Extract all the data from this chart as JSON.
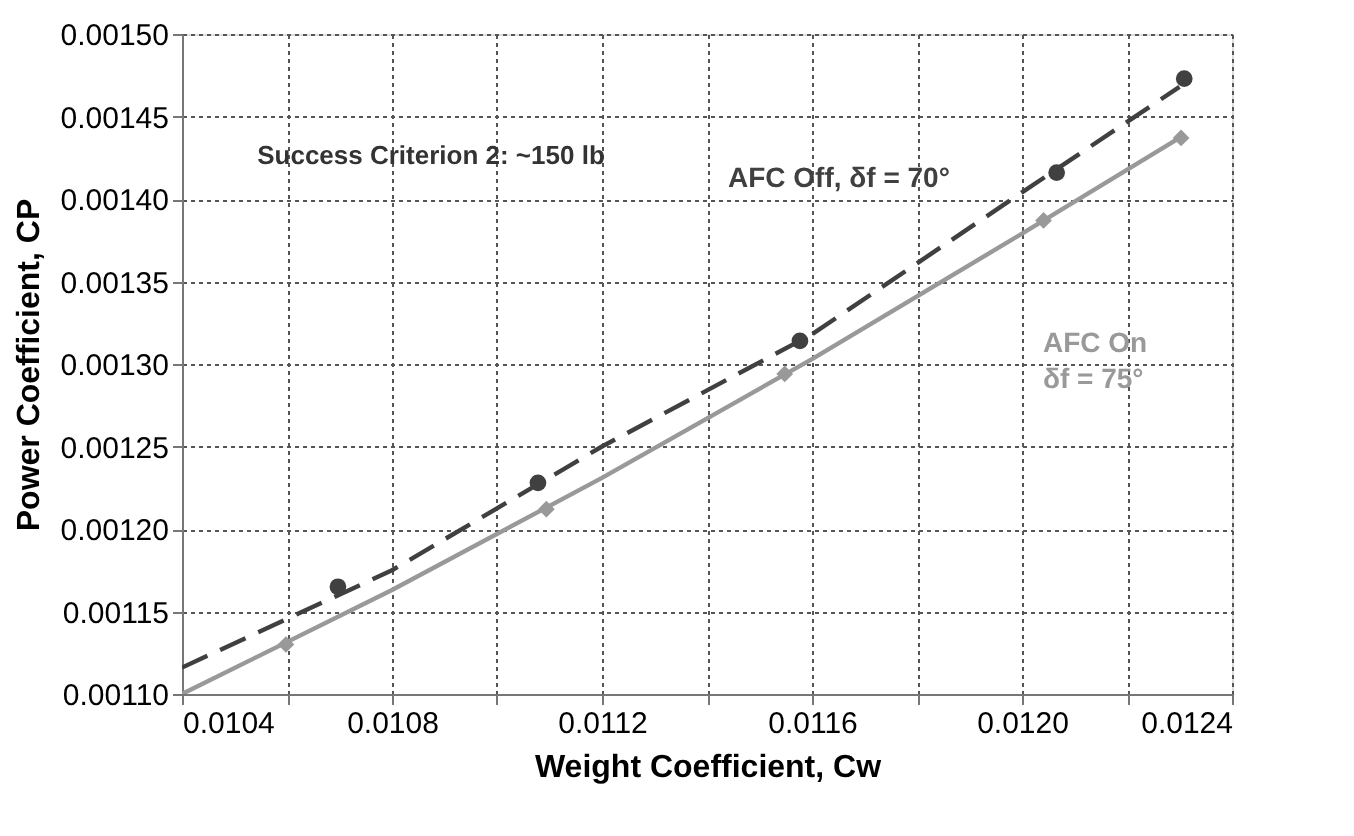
{
  "chart_data": {
    "type": "scatter",
    "xlabel": "Weight Coefficient, Cw",
    "ylabel": "Power Coefficient, CP",
    "annotations": [
      "Success Criterion 2:  ~150 lb"
    ],
    "series": [
      {
        "name": "AFC Off, δf = 70°",
        "marker": "circle",
        "color": "#404040",
        "x": [
          0.010697,
          0.011078,
          0.011577,
          0.012066,
          0.012309
        ],
        "values": [
          0.001165,
          0.001228,
          0.001314,
          0.001416,
          0.001473
        ]
      },
      {
        "type": "line",
        "line_style": "dashed",
        "marker": "none",
        "color": "#404040",
        "x": [
          0.0104,
          0.0108,
          0.0112,
          0.0116,
          0.012,
          0.0123
        ],
        "values": [
          0.001116,
          0.001175,
          0.00125,
          0.001318,
          0.001404,
          0.001468
        ]
      },
      {
        "name": "AFC On δf = 75°",
        "marker": "diamond",
        "color": "#999999",
        "x": [
          0.010598,
          0.011094,
          0.011548,
          0.012041,
          0.012303
        ],
        "values": [
          0.00113,
          0.001212,
          0.001294,
          0.001387,
          0.001437
        ]
      },
      {
        "type": "line",
        "line_style": "solid",
        "marker": "none",
        "color": "#999999",
        "x": [
          0.0104,
          0.0108,
          0.0112,
          0.0116,
          0.012,
          0.0123
        ],
        "values": [
          0.0011,
          0.001163,
          0.001231,
          0.001303,
          0.001379,
          0.001437
        ]
      }
    ],
    "xlim": [
      0.0104,
      0.0124
    ],
    "xticks": [
      0.0104,
      {
        "value": 0.0106,
        "label": null
      },
      0.0108,
      {
        "value": 0.011,
        "label": null
      },
      0.0112,
      {
        "value": 0.0114,
        "label": null
      },
      0.0116,
      {
        "value": 0.0118,
        "label": null
      },
      {
        "value": 0.012,
        "label": "0.0120"
      },
      {
        "value": 0.0122,
        "label": null
      },
      0.0124
    ],
    "ylim": [
      0.0011,
      0.0015
    ],
    "yticks": [
      {
        "value": 0.0011,
        "label": "0.00110"
      },
      0.00115,
      {
        "value": 0.0012,
        "label": "0.00120"
      },
      0.00125,
      {
        "value": 0.0013,
        "label": "0.00130"
      },
      0.00135,
      {
        "value": 0.0014,
        "label": "0.00140"
      },
      0.00145,
      {
        "value": 0.0015,
        "label": "0.00150"
      }
    ],
    "grid": true,
    "legend": false
  }
}
